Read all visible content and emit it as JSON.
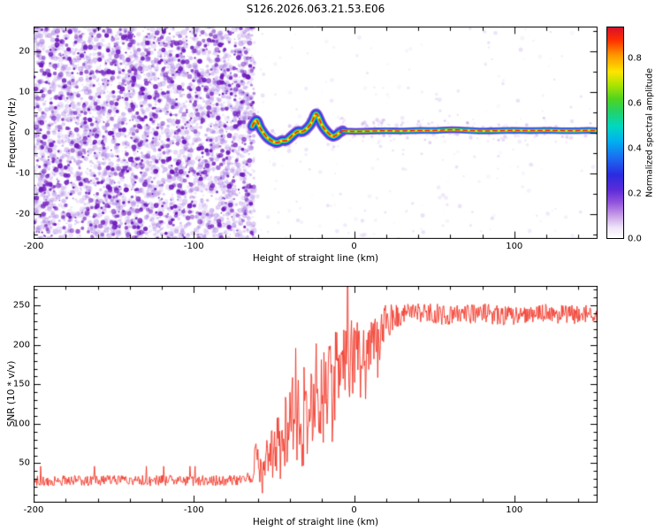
{
  "title": "S126.2026.063.21.53.E06",
  "palette": {
    "background": "#ffffff",
    "axis": "#000000"
  },
  "chart_data": [
    {
      "type": "heatmap",
      "name": "doppler-spectrogram",
      "xlabel": "Height of straight line (km)",
      "ylabel": "Frequency (Hz)",
      "xlim": [
        -200,
        152
      ],
      "ylim": [
        -26,
        26
      ],
      "xticks": [
        -200,
        -100,
        0,
        100
      ],
      "yticks": [
        -20,
        -10,
        0,
        10,
        20
      ],
      "colorbar": {
        "label": "Normalized spectral amplitude",
        "tick_labels": [
          "0.0",
          "0.2",
          "0.4",
          "0.6",
          "0.8"
        ],
        "tick_values": [
          0,
          0.2,
          0.4,
          0.6,
          0.8
        ],
        "range": [
          0,
          0.94
        ],
        "stops": [
          {
            "p": 0.0,
            "c": "#ffffff"
          },
          {
            "p": 0.05,
            "c": "#efe4f8"
          },
          {
            "p": 0.11,
            "c": "#c49ae6"
          },
          {
            "p": 0.17,
            "c": "#9152dd"
          },
          {
            "p": 0.23,
            "c": "#5c2bd8"
          },
          {
            "p": 0.3,
            "c": "#2b2be0"
          },
          {
            "p": 0.38,
            "c": "#1b6cf0"
          },
          {
            "p": 0.46,
            "c": "#00b0f0"
          },
          {
            "p": 0.53,
            "c": "#00d8c0"
          },
          {
            "p": 0.6,
            "c": "#22d26a"
          },
          {
            "p": 0.66,
            "c": "#4fd41f"
          },
          {
            "p": 0.73,
            "c": "#b0e400"
          },
          {
            "p": 0.79,
            "c": "#ffe400"
          },
          {
            "p": 0.87,
            "c": "#ff9400"
          },
          {
            "p": 0.94,
            "c": "#ff2e00"
          },
          {
            "p": 1.0,
            "c": "#d8102c"
          }
        ]
      },
      "noise_field": {
        "description": "dense purple speckle noise left of -62 km; sparse faint purple speckles elsewhere",
        "x_range": [
          -200,
          -62
        ],
        "light_count": 3200,
        "dark_count": 1100,
        "sparse_count": 230,
        "halo_count": 280,
        "light_rgb": [
          158,
          108,
          224
        ],
        "dark_rgb": [
          108,
          22,
          188
        ]
      },
      "trace_layer_colors": [
        "#8a50dd",
        "#2a2ae0",
        "#00b2f0",
        "#35cf30",
        "#ffe400"
      ],
      "trace_core_color": "#ff2400",
      "trace_hz_vs_km": [
        [
          -63.5,
          1.6
        ],
        [
          -62,
          2.8
        ],
        [
          -60.5,
          3.2
        ],
        [
          -59,
          1.4
        ],
        [
          -57,
          0.2
        ],
        [
          -55,
          -0.9
        ],
        [
          -52.5,
          -1.7
        ],
        [
          -50,
          -2.3
        ],
        [
          -47.5,
          -2.5
        ],
        [
          -45,
          -1.8
        ],
        [
          -42.5,
          -2.1
        ],
        [
          -40,
          -1.2
        ],
        [
          -37.5,
          -0.3
        ],
        [
          -35,
          0.5
        ],
        [
          -32.5,
          0.1
        ],
        [
          -30,
          0.8
        ],
        [
          -27.5,
          1.8
        ],
        [
          -25.5,
          3.2
        ],
        [
          -24,
          4.9
        ],
        [
          -22.5,
          4.2
        ],
        [
          -21,
          2.6
        ],
        [
          -19,
          1.2
        ],
        [
          -17,
          0.3
        ],
        [
          -15,
          -0.5
        ],
        [
          -13,
          -1.0
        ],
        [
          -11,
          -0.6
        ],
        [
          -9,
          0.1
        ],
        [
          -7,
          0.5
        ],
        [
          -4,
          0.4
        ],
        [
          0,
          0.3
        ],
        [
          10,
          0.4
        ],
        [
          20,
          0.5
        ],
        [
          30,
          0.4
        ],
        [
          40,
          0.6
        ],
        [
          50,
          0.5
        ],
        [
          60,
          0.8
        ],
        [
          70,
          0.6
        ],
        [
          80,
          0.4
        ],
        [
          90,
          0.5
        ],
        [
          100,
          0.6
        ],
        [
          110,
          0.5
        ],
        [
          120,
          0.6
        ],
        [
          130,
          0.5
        ],
        [
          140,
          0.5
        ],
        [
          146,
          0.6
        ],
        [
          152,
          0.5
        ]
      ]
    },
    {
      "type": "line",
      "name": "snr-profile",
      "xlabel": "Height of straight line (km)",
      "ylabel": "SNR (10 * v/v)",
      "xlim": [
        -200,
        152
      ],
      "ylim": [
        0,
        275
      ],
      "xticks": [
        -200,
        -100,
        0,
        100
      ],
      "yticks": [
        50,
        100,
        150,
        200,
        250
      ],
      "series": [
        {
          "name": "SNR",
          "color": "#f23527",
          "description": "flat noisy baseline ~28 left of -65 km, steep spiky rise from -62 to 25 km with one full-height spike near -4 km, noisy plateau ~235-245 right of 30 km",
          "sample_step_km": 0.4,
          "mean_keypoints": [
            [
              -200,
              28
            ],
            [
              -70,
              28
            ],
            [
              -66,
              30
            ],
            [
              -63,
              42
            ],
            [
              -61,
              66
            ],
            [
              -59,
              40
            ],
            [
              -57,
              33
            ],
            [
              -55,
              60
            ],
            [
              -53,
              42
            ],
            [
              -51,
              78
            ],
            [
              -49,
              52
            ],
            [
              -47,
              95
            ],
            [
              -45,
              65
            ],
            [
              -43,
              108
            ],
            [
              -41,
              75
            ],
            [
              -39,
              125
            ],
            [
              -37,
              88
            ],
            [
              -35,
              138
            ],
            [
              -33,
              98
            ],
            [
              -31,
              145
            ],
            [
              -29,
              108
            ],
            [
              -27,
              150
            ],
            [
              -25,
              115
            ],
            [
              -23,
              162
            ],
            [
              -21,
              128
            ],
            [
              -19,
              172
            ],
            [
              -17,
              138
            ],
            [
              -15,
              180
            ],
            [
              -13,
              148
            ],
            [
              -11,
              188
            ],
            [
              -9,
              158
            ],
            [
              -7,
              192
            ],
            [
              -5,
              172
            ],
            [
              -3,
              198
            ],
            [
              -1,
              182
            ],
            [
              1,
              202
            ],
            [
              3,
              186
            ],
            [
              5,
              208
            ],
            [
              8,
              196
            ],
            [
              11,
              214
            ],
            [
              14,
              204
            ],
            [
              17,
              222
            ],
            [
              20,
              228
            ],
            [
              24,
              234
            ],
            [
              28,
              238
            ],
            [
              34,
              240
            ],
            [
              45,
              241
            ],
            [
              60,
              237
            ],
            [
              80,
              240
            ],
            [
              100,
              236
            ],
            [
              120,
              240
            ],
            [
              152,
              238
            ]
          ],
          "noise_amp_keypoints": [
            [
              -200,
              7
            ],
            [
              -68,
              7
            ],
            [
              -62,
              16
            ],
            [
              -56,
              24
            ],
            [
              -50,
              32
            ],
            [
              -44,
              40
            ],
            [
              -38,
              46
            ],
            [
              -32,
              52
            ],
            [
              -26,
              55
            ],
            [
              -20,
              56
            ],
            [
              -14,
              52
            ],
            [
              -8,
              50
            ],
            [
              -2,
              46
            ],
            [
              3,
              44
            ],
            [
              8,
              40
            ],
            [
              13,
              33
            ],
            [
              18,
              26
            ],
            [
              24,
              20
            ],
            [
              30,
              15
            ],
            [
              40,
              13
            ],
            [
              152,
              12
            ]
          ],
          "spikes_km_value": [
            [
              -3.8,
              332
            ],
            [
              -36.5,
              196
            ]
          ]
        }
      ]
    }
  ]
}
